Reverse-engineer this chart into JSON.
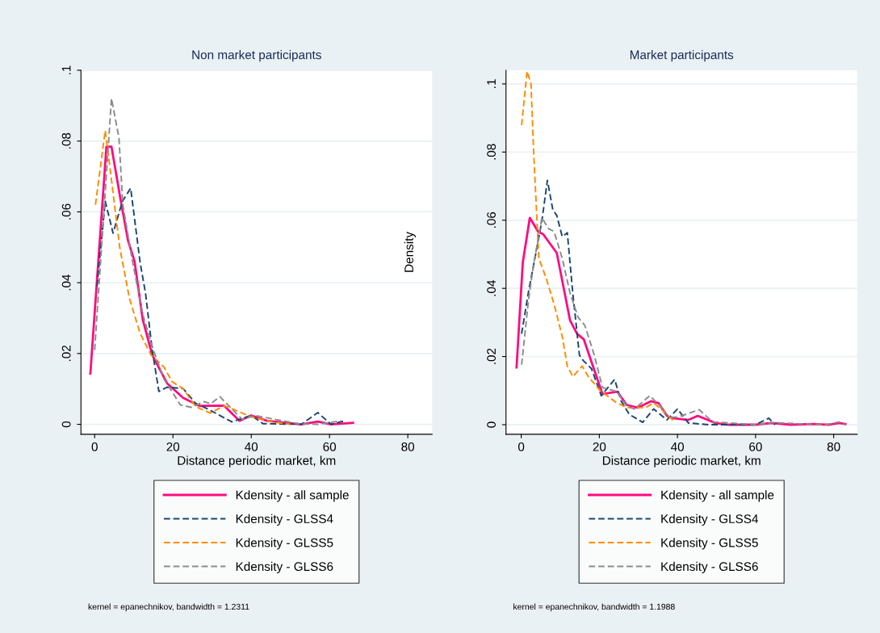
{
  "chart_data": [
    {
      "type": "line",
      "title": "Non market participants",
      "xlabel": "Distance periodic market, km",
      "xlim": [
        -3.5,
        86.2
      ],
      "ylim": [
        -0.0028,
        0.1
      ],
      "xticks": [
        0,
        20,
        40,
        60,
        80
      ],
      "yticks": [
        0,
        {
          "value": 0.02,
          "label": ".02"
        },
        {
          "value": 0.04,
          "label": ".04"
        },
        {
          "value": 0.06,
          "label": ".06"
        },
        {
          "value": 0.08,
          "label": ".08"
        },
        {
          "value": 0.1,
          "label": ".1"
        }
      ],
      "grid": "y",
      "legend": "bottom",
      "annotations": [
        "kernel = epanechnikov, bandwidth = 1.2311"
      ],
      "series": [
        {
          "name": "Kdensity - all sample",
          "color": "#ff0a80",
          "line_style": "solid",
          "x": [
            -1.1,
            3,
            4.3,
            6.6,
            8.5,
            10.2,
            12.3,
            14.7,
            18.5,
            22.6,
            26.8,
            33,
            37,
            40,
            44,
            52.8,
            57,
            60.4,
            66
          ],
          "values": [
            0.0143,
            0.0784,
            0.0784,
            0.0636,
            0.052,
            0.046,
            0.0295,
            0.0196,
            0.0116,
            0.0075,
            0.0052,
            0.0053,
            0.001,
            0.0025,
            0.001,
            0,
            0.0008,
            0,
            0.0004
          ]
        },
        {
          "name": "Kdensity - GLSS4",
          "color": "#1a476f",
          "line_style": "dashed",
          "x": [
            0.6,
            2.7,
            4.7,
            7.1,
            9.2,
            11.6,
            13,
            14.7,
            16.4,
            18.5,
            22.6,
            25.8,
            28.8,
            35,
            40,
            43,
            52.8,
            57,
            60.4,
            64
          ],
          "values": [
            0.039,
            0.063,
            0.054,
            0.063,
            0.0667,
            0.0458,
            0.037,
            0.021,
            0.0093,
            0.0105,
            0.0101,
            0.0059,
            0.0044,
            0.0007,
            0.0025,
            0.0002,
            0,
            0.0033,
            0,
            0.001
          ]
        },
        {
          "name": "Kdensity - GLSS5",
          "color": "#ff8c00",
          "line_style": "dashed",
          "x": [
            0.2,
            2.7,
            4.3,
            6.4,
            8.9,
            11.6,
            14.4,
            17.7,
            19.8,
            22.6,
            25.8,
            29.5,
            33,
            34.2,
            40,
            45.4,
            50
          ],
          "values": [
            0.062,
            0.083,
            0.069,
            0.05,
            0.0355,
            0.0257,
            0.0196,
            0.0162,
            0.012,
            0.0101,
            0.005,
            0.0032,
            0.0052,
            0.0048,
            0.0021,
            0.0007,
            0
          ]
        },
        {
          "name": "Kdensity - GLSS6",
          "color": "#8c8c8c",
          "line_style": "dashed",
          "x": [
            0,
            4.3,
            6.2,
            7.2,
            9.5,
            12.3,
            15,
            17.7,
            21.9,
            24.7,
            28,
            29.6,
            32,
            35,
            37.7,
            41,
            46.6,
            52,
            57,
            63
          ],
          "values": [
            0.021,
            0.092,
            0.081,
            0.062,
            0.047,
            0.031,
            0.021,
            0.0128,
            0.0055,
            0.0048,
            0.0064,
            0.0058,
            0.0078,
            0.0044,
            0.0014,
            0.0025,
            0.0013,
            0.0002,
            0,
            0.001
          ]
        }
      ]
    },
    {
      "type": "line",
      "title": "Market participants",
      "xlabel": "Distance periodic market, km",
      "ylabel": "Density",
      "xlim": [
        -3.9,
        86
      ],
      "ylim": [
        -0.0028,
        0.104
      ],
      "xticks": [
        0,
        20,
        40,
        60,
        80
      ],
      "yticks": [
        0,
        {
          "value": 0.02,
          "label": ".02"
        },
        {
          "value": 0.04,
          "label": ".04"
        },
        {
          "value": 0.06,
          "label": ".06"
        },
        {
          "value": 0.08,
          "label": ".08"
        },
        {
          "value": 0.1,
          "label": ".1"
        }
      ],
      "grid": "y",
      "legend": "bottom",
      "annotations": [
        "kernel = epanechnikov, bandwidth = 1.1988"
      ],
      "series": [
        {
          "name": "Kdensity - all sample",
          "color": "#ff0a80",
          "line_style": "solid",
          "x": [
            -1.2,
            0.4,
            2.2,
            4.3,
            5.6,
            9.1,
            12.5,
            14.3,
            16,
            20.8,
            24.6,
            27,
            29.8,
            33.2,
            35.2,
            37.3,
            38.7,
            42.8,
            45.2,
            49.7,
            53,
            60,
            64.2,
            69,
            74.5,
            78.6,
            81.4,
            83
          ],
          "values": [
            0.0168,
            0.0476,
            0.0607,
            0.0567,
            0.0559,
            0.0504,
            0.0306,
            0.0267,
            0.0251,
            0.009,
            0.0097,
            0.0058,
            0.005,
            0.0069,
            0.0063,
            0.0026,
            0.0019,
            0.0014,
            0.0026,
            0.0005,
            0,
            0,
            0.0005,
            0,
            0.0002,
            0,
            0.0005,
            0.0002
          ]
        },
        {
          "name": "Kdensity - GLSS4",
          "color": "#1a476f",
          "line_style": "dashed",
          "x": [
            0.1,
            1.9,
            3.9,
            5.3,
            6.7,
            8.1,
            9.1,
            10.5,
            11.8,
            13.2,
            14.9,
            15.9,
            18,
            20.5,
            23.9,
            25.6,
            27.7,
            31.1,
            33.9,
            37.3,
            40,
            42.8,
            48,
            60,
            63.4,
            65
          ],
          "values": [
            0.0267,
            0.0393,
            0.0512,
            0.0599,
            0.0717,
            0.063,
            0.0614,
            0.0552,
            0.0563,
            0.0386,
            0.0204,
            0.0188,
            0.0164,
            0.0085,
            0.0133,
            0.0069,
            0.003,
            0.0007,
            0.0046,
            0.0014,
            0.0046,
            0.0005,
            0,
            0,
            0.0019,
            0
          ]
        },
        {
          "name": "Kdensity - GLSS5",
          "color": "#ff8c00",
          "line_style": "dashed",
          "x": [
            0.1,
            1.5,
            2.5,
            3.2,
            4.5,
            6.3,
            8.4,
            10.5,
            11.8,
            13.2,
            15.6,
            17.2,
            20.1,
            24.2,
            27,
            31.8,
            33.9,
            36.6,
            39.4
          ],
          "values": [
            0.0879,
            0.1037,
            0.1,
            0.0796,
            0.0488,
            0.0433,
            0.0354,
            0.0259,
            0.0172,
            0.0141,
            0.0172,
            0.0141,
            0.0101,
            0.0066,
            0.005,
            0.005,
            0.0064,
            0.0038,
            0.0007
          ]
        },
        {
          "name": "Kdensity - GLSS6",
          "color": "#8c8c8c",
          "line_style": "dashed",
          "x": [
            0.1,
            1.9,
            3.2,
            5.3,
            7,
            8.4,
            10.5,
            12.5,
            14.6,
            16.3,
            18.7,
            20.8,
            24.6,
            27,
            29,
            32.9,
            36,
            37.9,
            40,
            45.6,
            49,
            60,
            64,
            78,
            81.4,
            83
          ],
          "values": [
            0.0176,
            0.037,
            0.0472,
            0.0607,
            0.0575,
            0.0567,
            0.0488,
            0.0386,
            0.0314,
            0.0291,
            0.0204,
            0.0109,
            0.0097,
            0.0054,
            0.0046,
            0.0085,
            0.005,
            0.0022,
            0.0022,
            0.0044,
            0.0008,
            0,
            0.0006,
            0,
            0.0008,
            0
          ]
        }
      ]
    }
  ]
}
